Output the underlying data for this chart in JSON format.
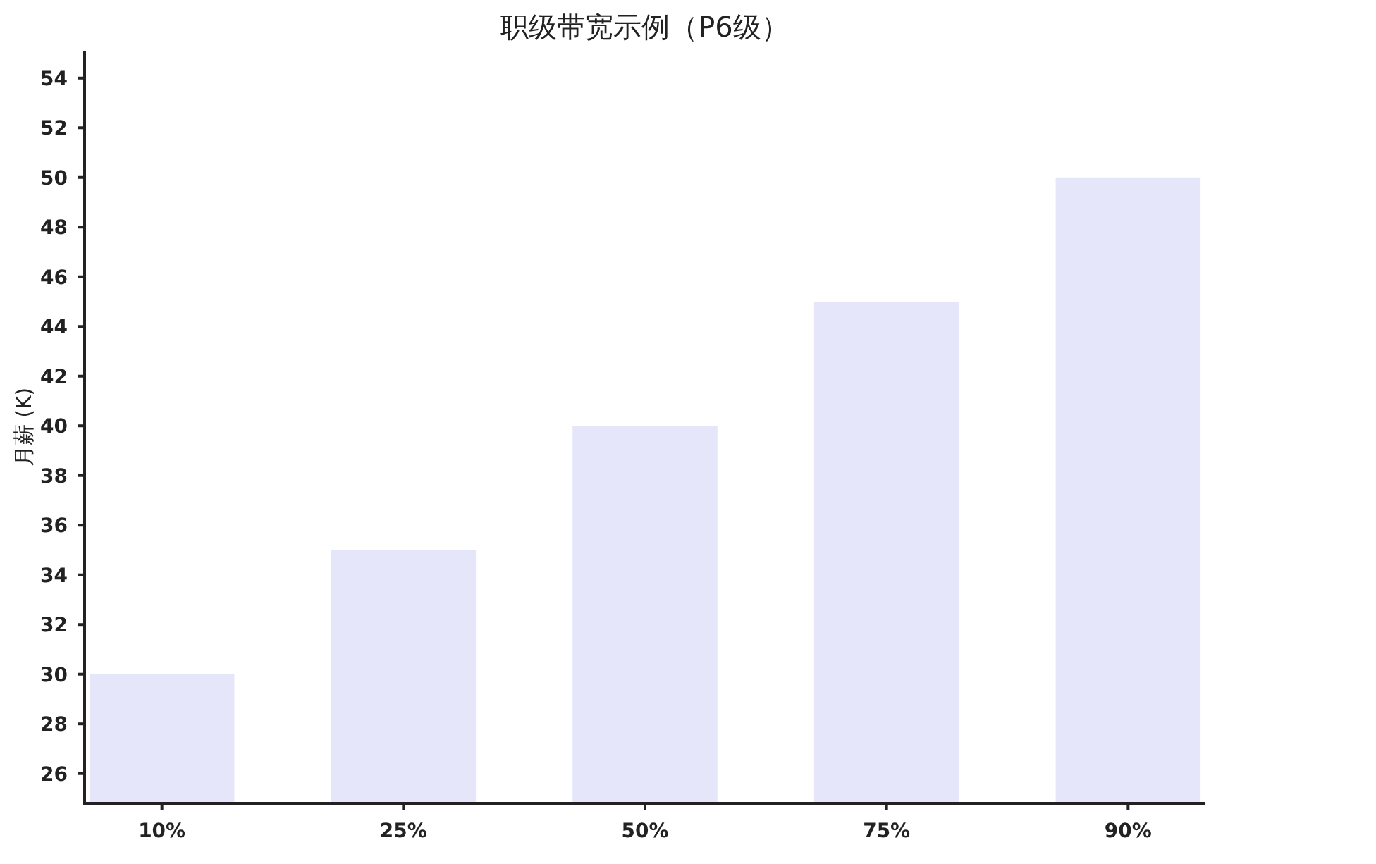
{
  "chart_data": {
    "type": "bar",
    "title": "职级带宽示例（P6级）",
    "ylabel": "月薪 (K)",
    "categories": [
      "10%",
      "25%",
      "50%",
      "75%",
      "90%"
    ],
    "values": [
      30,
      35,
      40,
      45,
      50
    ],
    "color": "#e6e6fa",
    "ylim": [
      24.8,
      55.1
    ],
    "yticks": [
      26,
      28,
      30,
      32,
      34,
      36,
      38,
      40,
      42,
      44,
      46,
      48,
      50,
      52,
      54
    ],
    "grid": false
  }
}
